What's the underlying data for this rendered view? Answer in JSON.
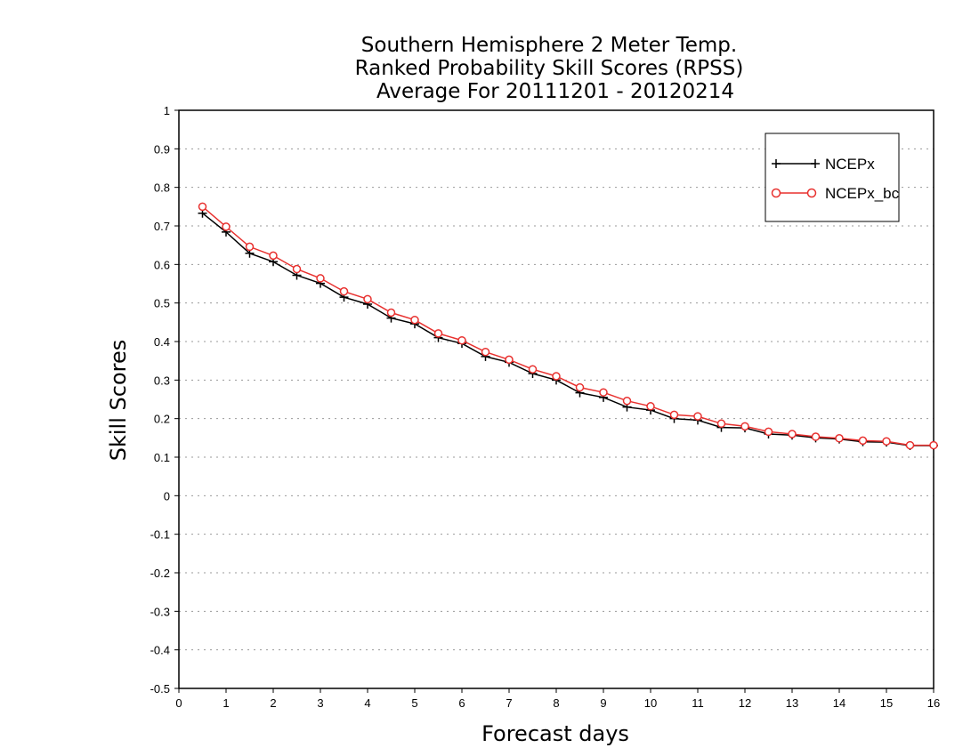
{
  "chart_data": {
    "type": "line",
    "title_lines": [
      "Southern Hemisphere 2 Meter Temp.",
      "Ranked Probability Skill Scores (RPSS)",
      "Average For 20111201 - 20120214"
    ],
    "xlabel": "Forecast days",
    "ylabel": "Skill Scores",
    "xlim": [
      0,
      16
    ],
    "ylim": [
      -0.5,
      1
    ],
    "xticks": [
      "0",
      "1",
      "2",
      "3",
      "4",
      "5",
      "6",
      "7",
      "8",
      "9",
      "10",
      "11",
      "12",
      "13",
      "14",
      "15",
      "16"
    ],
    "yticks": [
      "1",
      "0.9",
      "0.8",
      "0.7",
      "0.6",
      "0.5",
      "0.4",
      "0.3",
      "0.2",
      "0.1",
      "0",
      "-0.1",
      "-0.2",
      "-0.3",
      "-0.4",
      "-0.5"
    ],
    "grid": true,
    "legend_position": "top-right",
    "x": [
      0.5,
      1,
      1.5,
      2,
      2.5,
      3,
      3.5,
      4,
      4.5,
      5,
      5.5,
      6,
      6.5,
      7,
      7.5,
      8,
      8.5,
      9,
      9.5,
      10,
      10.5,
      11,
      11.5,
      12,
      12.5,
      13,
      13.5,
      14,
      14.5,
      15,
      15.5,
      16
    ],
    "series": [
      {
        "name": "NCEPx",
        "color": "#000000",
        "marker": "plus",
        "values": [
          0.733,
          0.684,
          0.629,
          0.607,
          0.572,
          0.551,
          0.515,
          0.497,
          0.461,
          0.446,
          0.41,
          0.395,
          0.361,
          0.346,
          0.317,
          0.3,
          0.267,
          0.255,
          0.23,
          0.222,
          0.2,
          0.196,
          0.177,
          0.176,
          0.16,
          0.157,
          0.15,
          0.147,
          0.14,
          0.139,
          0.13,
          0.13
        ]
      },
      {
        "name": "NCEPx_bc",
        "color": "#e8312f",
        "marker": "circle",
        "values": [
          0.75,
          0.698,
          0.646,
          0.623,
          0.588,
          0.564,
          0.53,
          0.51,
          0.475,
          0.456,
          0.421,
          0.403,
          0.373,
          0.353,
          0.328,
          0.31,
          0.281,
          0.268,
          0.246,
          0.232,
          0.21,
          0.206,
          0.187,
          0.18,
          0.166,
          0.16,
          0.153,
          0.149,
          0.143,
          0.141,
          0.131,
          0.131
        ]
      }
    ]
  }
}
